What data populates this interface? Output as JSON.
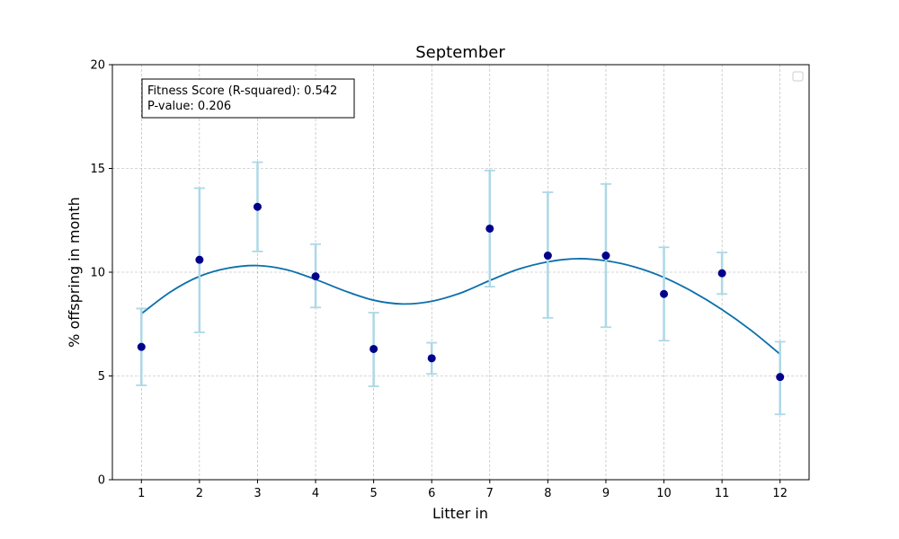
{
  "chart_data": {
    "type": "scatter",
    "title": "September",
    "xlabel": "Litter in",
    "ylabel": "% offspring in month",
    "xlim": [
      0.5,
      12.5
    ],
    "ylim": [
      0,
      20
    ],
    "xticks": [
      1,
      2,
      3,
      4,
      5,
      6,
      7,
      8,
      9,
      10,
      11,
      12
    ],
    "yticks": [
      0,
      5,
      10,
      15,
      20
    ],
    "grid": true,
    "legend": "top-right (empty)",
    "points": {
      "x": [
        1,
        2,
        3,
        4,
        5,
        6,
        7,
        8,
        9,
        10,
        11,
        12
      ],
      "y": [
        6.4,
        10.6,
        13.15,
        9.8,
        6.3,
        5.85,
        12.1,
        10.8,
        10.8,
        8.95,
        9.95,
        4.95
      ],
      "err_low": [
        4.55,
        7.1,
        11.0,
        8.3,
        4.5,
        5.1,
        9.3,
        7.8,
        7.35,
        6.7,
        8.95,
        3.15
      ],
      "err_high": [
        8.25,
        14.05,
        15.3,
        11.35,
        8.05,
        6.6,
        14.9,
        13.85,
        14.25,
        11.2,
        10.95,
        6.65
      ],
      "color": "#00008b",
      "errorbar_color": "#add8e6"
    },
    "fit_curve": {
      "color": "#0a6fab",
      "x": [
        1,
        1.5,
        2,
        2.5,
        3,
        3.5,
        4,
        4.5,
        5,
        5.5,
        6,
        6.5,
        7,
        7.5,
        8,
        8.5,
        9,
        9.5,
        10,
        10.5,
        11,
        11.5,
        12
      ],
      "y": [
        8.0,
        9.05,
        9.8,
        10.2,
        10.32,
        10.12,
        9.65,
        9.1,
        8.65,
        8.47,
        8.6,
        9.0,
        9.6,
        10.15,
        10.5,
        10.65,
        10.55,
        10.25,
        9.75,
        9.05,
        8.2,
        7.2,
        6.05
      ]
    },
    "annotation": {
      "line1": "Fitness Score (R-squared): 0.542",
      "line2": "P-value: 0.206"
    }
  }
}
